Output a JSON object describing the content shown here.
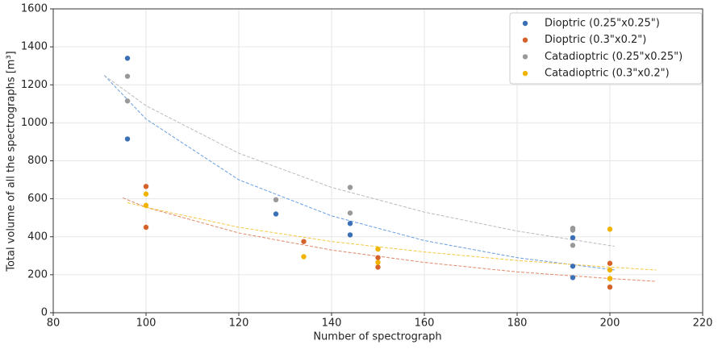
{
  "chart_data": {
    "type": "scatter",
    "xlabel": "Number of spectrograph",
    "ylabel": "Total volume of all the spectrographs [m³]",
    "xlim": [
      80,
      220
    ],
    "xticks": [
      80,
      100,
      120,
      140,
      160,
      180,
      200,
      220
    ],
    "ylim": [
      0,
      1600
    ],
    "yticks": [
      0,
      200,
      400,
      600,
      800,
      1000,
      1200,
      1400,
      1600
    ],
    "grid": true,
    "legend": "upper-right",
    "series": [
      {
        "name": "Dioptric (0.25\"x0.25\")",
        "color": "#3b6fb6",
        "x": [
          96,
          96,
          128,
          144,
          144,
          192,
          192,
          192
        ],
        "values": [
          1340,
          915,
          520,
          470,
          410,
          395,
          245,
          185
        ]
      },
      {
        "name": "Dioptric (0.3\"x0.2\")",
        "color": "#d4622a",
        "x": [
          100,
          100,
          134,
          150,
          150,
          200,
          200,
          200
        ],
        "values": [
          665,
          450,
          375,
          290,
          240,
          260,
          180,
          135
        ]
      },
      {
        "name": "Catadioptric (0.25\"x0.25\")",
        "color": "#999999",
        "x": [
          96,
          96,
          128,
          144,
          144,
          192,
          192,
          192
        ],
        "values": [
          1245,
          1115,
          595,
          660,
          525,
          445,
          435,
          355
        ]
      },
      {
        "name": "Catadioptric (0.3\"x0.2\")",
        "color": "#f0b400",
        "x": [
          100,
          100,
          134,
          150,
          150,
          200,
          200,
          200
        ],
        "values": [
          625,
          565,
          295,
          335,
          265,
          440,
          225,
          180
        ]
      }
    ],
    "fits": [
      {
        "color": "#6a9ee0",
        "x": [
          91,
          100,
          120,
          140,
          160,
          180,
          201
        ],
        "values": [
          1250,
          1020,
          700,
          510,
          380,
          290,
          225
        ]
      },
      {
        "color": "#e0896a",
        "x": [
          95,
          100,
          120,
          140,
          160,
          180,
          200,
          210
        ],
        "values": [
          605,
          555,
          420,
          330,
          265,
          215,
          180,
          165
        ]
      },
      {
        "color": "#bbbbbb",
        "x": [
          91,
          100,
          120,
          140,
          160,
          180,
          201
        ],
        "values": [
          1250,
          1090,
          840,
          660,
          530,
          430,
          350
        ]
      },
      {
        "color": "#f5c842",
        "x": [
          96,
          100,
          120,
          140,
          160,
          180,
          200,
          210
        ],
        "values": [
          580,
          555,
          450,
          375,
          320,
          275,
          240,
          225
        ]
      }
    ]
  }
}
